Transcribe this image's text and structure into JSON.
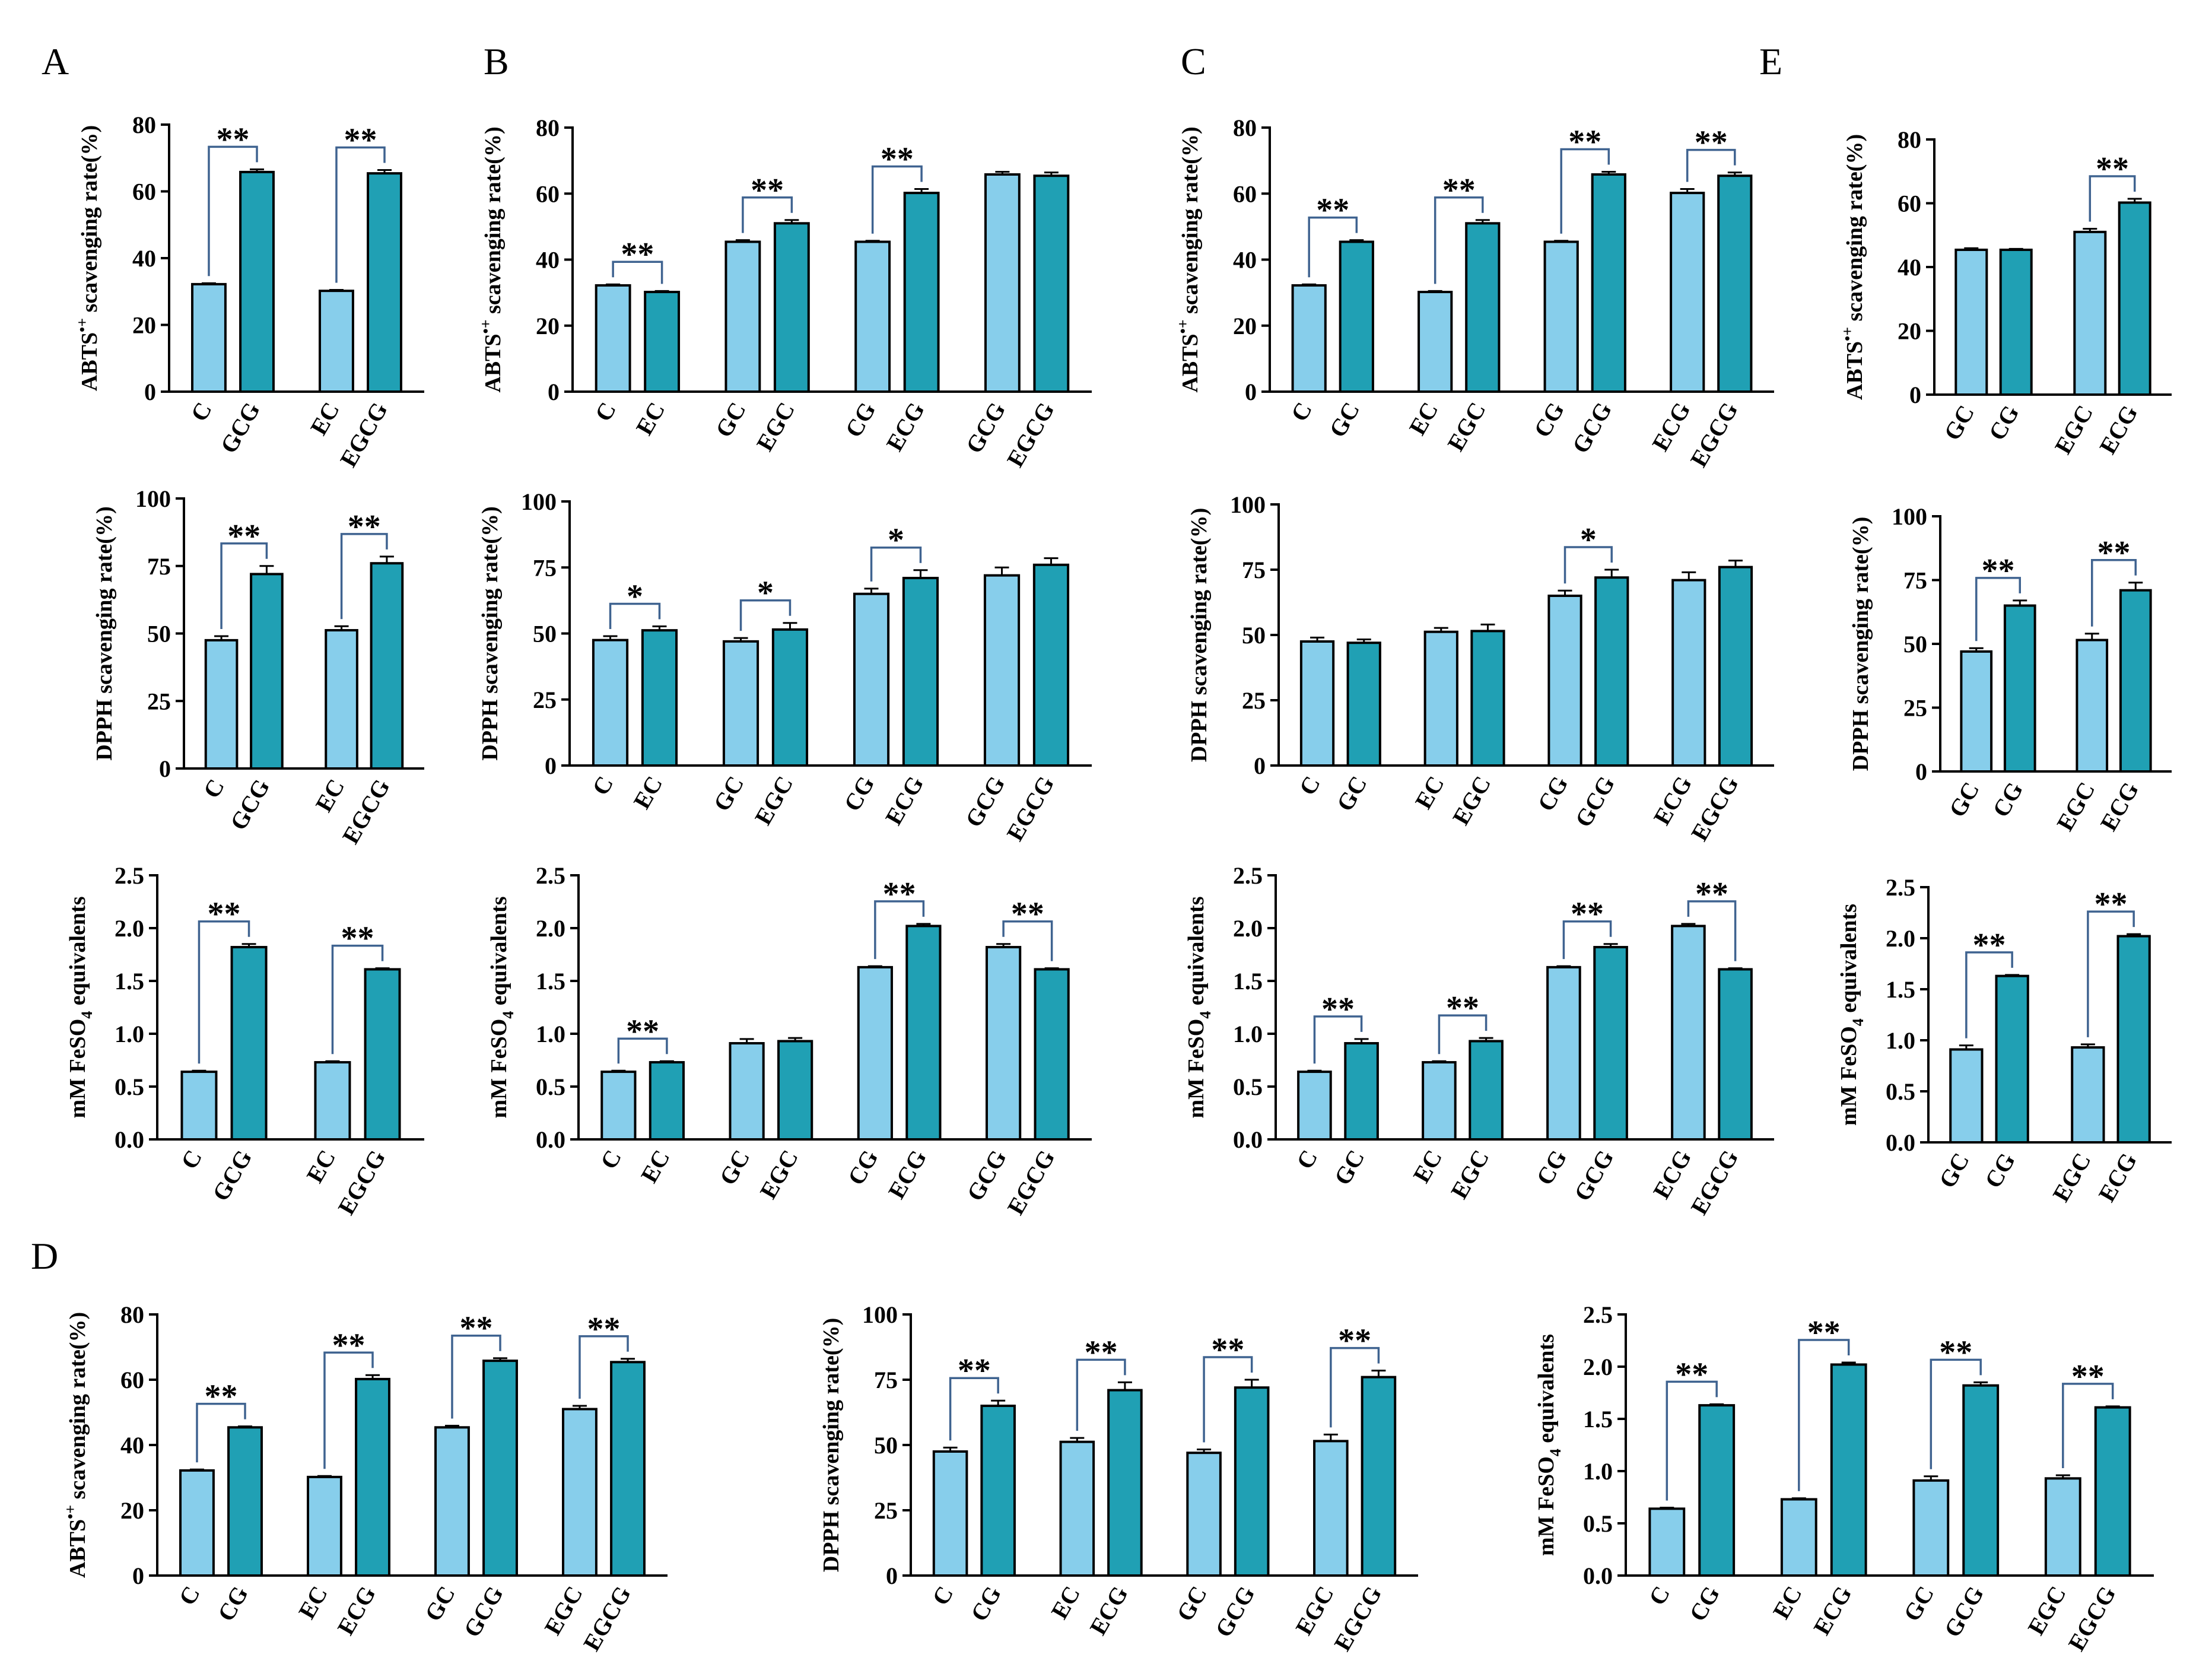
{
  "panel_letters": [
    "A",
    "B",
    "C",
    "D",
    "E"
  ],
  "colors": {
    "light": "#87CEEB",
    "dark": "#20A0B4",
    "bracket": "#3F6390",
    "axis": "#000000"
  },
  "chart_data": [
    {
      "id": "A1",
      "type": "bar",
      "panel": "A",
      "ylabel": "ABTS•+ scavenging rate(%)",
      "ylabel_kind": "abts",
      "ylim": [
        0,
        80
      ],
      "yticks": [
        "0",
        "20",
        "40",
        "60",
        "80"
      ],
      "groups": [
        {
          "labels": [
            "C",
            "GCG"
          ],
          "values": [
            32.2,
            65.8
          ],
          "errors": [
            0.3,
            0.8
          ],
          "sig": "**"
        },
        {
          "labels": [
            "EC",
            "EGCG"
          ],
          "values": [
            30.2,
            65.4
          ],
          "errors": [
            0.3,
            1.0
          ],
          "sig": "**"
        }
      ]
    },
    {
      "id": "A2",
      "type": "bar",
      "panel": "A",
      "ylabel": "DPPH scavenging rate(%)",
      "ylabel_kind": "plain",
      "ylim": [
        0,
        100
      ],
      "yticks": [
        "0",
        "25",
        "50",
        "75",
        "100"
      ],
      "groups": [
        {
          "labels": [
            "C",
            "GCG"
          ],
          "values": [
            47.5,
            72.0
          ],
          "errors": [
            1.5,
            3.0
          ],
          "sig": "**"
        },
        {
          "labels": [
            "EC",
            "EGCG"
          ],
          "values": [
            51.2,
            76.0
          ],
          "errors": [
            1.5,
            2.5
          ],
          "sig": "**"
        }
      ]
    },
    {
      "id": "A3",
      "type": "bar",
      "panel": "A",
      "ylabel": "mM FeSO4 equivalents",
      "ylabel_kind": "feso4",
      "ylim": [
        0,
        2.5
      ],
      "yticks": [
        "0.0",
        "0.5",
        "1.0",
        "1.5",
        "2.0",
        "2.5"
      ],
      "groups": [
        {
          "labels": [
            "C",
            "GCG"
          ],
          "values": [
            0.64,
            1.82
          ],
          "errors": [
            0.01,
            0.03
          ],
          "sig": "**"
        },
        {
          "labels": [
            "EC",
            "EGCG"
          ],
          "values": [
            0.73,
            1.61
          ],
          "errors": [
            0.01,
            0.01
          ],
          "sig": "**"
        }
      ]
    },
    {
      "id": "B1",
      "type": "bar",
      "panel": "B",
      "ylabel": "ABTS•+ scavenging rate(%)",
      "ylabel_kind": "abts",
      "ylim": [
        0,
        80
      ],
      "yticks": [
        "0",
        "20",
        "40",
        "60",
        "80"
      ],
      "groups": [
        {
          "labels": [
            "C",
            "EC"
          ],
          "values": [
            32.2,
            30.2
          ],
          "errors": [
            0.3,
            0.3
          ],
          "sig": "**"
        },
        {
          "labels": [
            "GC",
            "EGC"
          ],
          "values": [
            45.4,
            51.0
          ],
          "errors": [
            0.5,
            1.0
          ],
          "sig": "**"
        },
        {
          "labels": [
            "CG",
            "ECG"
          ],
          "values": [
            45.4,
            60.2
          ],
          "errors": [
            0.3,
            1.2
          ],
          "sig": "**"
        },
        {
          "labels": [
            "GCG",
            "EGCG"
          ],
          "values": [
            65.8,
            65.4
          ],
          "errors": [
            0.8,
            1.0
          ],
          "sig": ""
        }
      ]
    },
    {
      "id": "B2",
      "type": "bar",
      "panel": "B",
      "ylabel": "DPPH scavenging rate(%)",
      "ylabel_kind": "plain",
      "ylim": [
        0,
        100
      ],
      "yticks": [
        "0",
        "25",
        "50",
        "75",
        "100"
      ],
      "groups": [
        {
          "labels": [
            "C",
            "EC"
          ],
          "values": [
            47.5,
            51.2
          ],
          "errors": [
            1.5,
            1.5
          ],
          "sig": "*"
        },
        {
          "labels": [
            "GC",
            "EGC"
          ],
          "values": [
            47.0,
            51.5
          ],
          "errors": [
            1.3,
            2.5
          ],
          "sig": "*"
        },
        {
          "labels": [
            "CG",
            "ECG"
          ],
          "values": [
            65.0,
            71.0
          ],
          "errors": [
            2.0,
            3.0
          ],
          "sig": "*"
        },
        {
          "labels": [
            "GCG",
            "EGCG"
          ],
          "values": [
            72.0,
            76.0
          ],
          "errors": [
            3.0,
            2.5
          ],
          "sig": ""
        }
      ]
    },
    {
      "id": "B3",
      "type": "bar",
      "panel": "B",
      "ylabel": "mM FeSO4 equivalents",
      "ylabel_kind": "feso4",
      "ylim": [
        0,
        2.5
      ],
      "yticks": [
        "0.0",
        "0.5",
        "1.0",
        "1.5",
        "2.0",
        "2.5"
      ],
      "groups": [
        {
          "labels": [
            "C",
            "EC"
          ],
          "values": [
            0.64,
            0.73
          ],
          "errors": [
            0.01,
            0.01
          ],
          "sig": "**"
        },
        {
          "labels": [
            "GC",
            "EGC"
          ],
          "values": [
            0.91,
            0.93
          ],
          "errors": [
            0.04,
            0.03
          ],
          "sig": ""
        },
        {
          "labels": [
            "CG",
            "ECG"
          ],
          "values": [
            1.63,
            2.02
          ],
          "errors": [
            0.01,
            0.02
          ],
          "sig": "**"
        },
        {
          "labels": [
            "GCG",
            "EGCG"
          ],
          "values": [
            1.82,
            1.61
          ],
          "errors": [
            0.03,
            0.01
          ],
          "sig": "**"
        }
      ]
    },
    {
      "id": "C1",
      "type": "bar",
      "panel": "C",
      "ylabel": "ABTS•+ scavenging rate(%)",
      "ylabel_kind": "abts",
      "ylim": [
        0,
        80
      ],
      "yticks": [
        "0",
        "20",
        "40",
        "60",
        "80"
      ],
      "groups": [
        {
          "labels": [
            "C",
            "GC"
          ],
          "values": [
            32.2,
            45.4
          ],
          "errors": [
            0.3,
            0.5
          ],
          "sig": "**"
        },
        {
          "labels": [
            "EC",
            "EGC"
          ],
          "values": [
            30.2,
            51.0
          ],
          "errors": [
            0.3,
            1.0
          ],
          "sig": "**"
        },
        {
          "labels": [
            "CG",
            "GCG"
          ],
          "values": [
            45.4,
            65.8
          ],
          "errors": [
            0.3,
            0.8
          ],
          "sig": "**"
        },
        {
          "labels": [
            "ECG",
            "EGCG"
          ],
          "values": [
            60.2,
            65.4
          ],
          "errors": [
            1.2,
            1.0
          ],
          "sig": "**"
        }
      ]
    },
    {
      "id": "C2",
      "type": "bar",
      "panel": "C",
      "ylabel": "DPPH scavenging rate(%)",
      "ylabel_kind": "plain",
      "ylim": [
        0,
        100
      ],
      "yticks": [
        "0",
        "25",
        "50",
        "75",
        "100"
      ],
      "groups": [
        {
          "labels": [
            "C",
            "GC"
          ],
          "values": [
            47.5,
            47.0
          ],
          "errors": [
            1.5,
            1.3
          ],
          "sig": ""
        },
        {
          "labels": [
            "EC",
            "EGC"
          ],
          "values": [
            51.2,
            51.5
          ],
          "errors": [
            1.5,
            2.5
          ],
          "sig": ""
        },
        {
          "labels": [
            "CG",
            "GCG"
          ],
          "values": [
            65.0,
            72.0
          ],
          "errors": [
            2.0,
            3.0
          ],
          "sig": "*"
        },
        {
          "labels": [
            "ECG",
            "EGCG"
          ],
          "values": [
            71.0,
            76.0
          ],
          "errors": [
            3.0,
            2.5
          ],
          "sig": ""
        }
      ]
    },
    {
      "id": "C3",
      "type": "bar",
      "panel": "C",
      "ylabel": "mM FeSO4 equivalents",
      "ylabel_kind": "feso4",
      "ylim": [
        0,
        2.5
      ],
      "yticks": [
        "0.0",
        "0.5",
        "1.0",
        "1.5",
        "2.0",
        "2.5"
      ],
      "groups": [
        {
          "labels": [
            "C",
            "GC"
          ],
          "values": [
            0.64,
            0.91
          ],
          "errors": [
            0.01,
            0.04
          ],
          "sig": "**"
        },
        {
          "labels": [
            "EC",
            "EGC"
          ],
          "values": [
            0.73,
            0.93
          ],
          "errors": [
            0.01,
            0.03
          ],
          "sig": "**"
        },
        {
          "labels": [
            "CG",
            "GCG"
          ],
          "values": [
            1.63,
            1.82
          ],
          "errors": [
            0.01,
            0.03
          ],
          "sig": "**"
        },
        {
          "labels": [
            "ECG",
            "EGCG"
          ],
          "values": [
            2.02,
            1.61
          ],
          "errors": [
            0.02,
            0.01
          ],
          "sig": "**"
        }
      ]
    },
    {
      "id": "E1",
      "type": "bar",
      "panel": "E",
      "ylabel": "ABTS•+ scavenging rate(%)",
      "ylabel_kind": "abts",
      "ylim": [
        0,
        80
      ],
      "yticks": [
        "0",
        "20",
        "40",
        "60",
        "80"
      ],
      "groups": [
        {
          "labels": [
            "GC",
            "CG"
          ],
          "values": [
            45.4,
            45.4
          ],
          "errors": [
            0.5,
            0.3
          ],
          "sig": ""
        },
        {
          "labels": [
            "EGC",
            "ECG"
          ],
          "values": [
            51.0,
            60.2
          ],
          "errors": [
            1.0,
            1.2
          ],
          "sig": "**"
        }
      ]
    },
    {
      "id": "E2",
      "type": "bar",
      "panel": "E",
      "ylabel": "DPPH scavenging rate(%)",
      "ylabel_kind": "plain",
      "ylim": [
        0,
        100
      ],
      "yticks": [
        "0",
        "25",
        "50",
        "75",
        "100"
      ],
      "groups": [
        {
          "labels": [
            "GC",
            "CG"
          ],
          "values": [
            47.0,
            65.0
          ],
          "errors": [
            1.3,
            2.0
          ],
          "sig": "**"
        },
        {
          "labels": [
            "EGC",
            "ECG"
          ],
          "values": [
            51.5,
            71.0
          ],
          "errors": [
            2.5,
            3.0
          ],
          "sig": "**"
        }
      ]
    },
    {
      "id": "E3",
      "type": "bar",
      "panel": "E",
      "ylabel": "mM FeSO4 equivalents",
      "ylabel_kind": "feso4",
      "ylim": [
        0,
        2.5
      ],
      "yticks": [
        "0.0",
        "0.5",
        "1.0",
        "1.5",
        "2.0",
        "2.5"
      ],
      "groups": [
        {
          "labels": [
            "GC",
            "CG"
          ],
          "values": [
            0.91,
            1.63
          ],
          "errors": [
            0.04,
            0.01
          ],
          "sig": "**"
        },
        {
          "labels": [
            "EGC",
            "ECG"
          ],
          "values": [
            0.93,
            2.02
          ],
          "errors": [
            0.03,
            0.02
          ],
          "sig": "**"
        }
      ]
    },
    {
      "id": "D1",
      "type": "bar",
      "panel": "D",
      "ylabel": "ABTS•+ scavenging rate(%)",
      "ylabel_kind": "abts",
      "ylim": [
        0,
        80
      ],
      "yticks": [
        "0",
        "20",
        "40",
        "60",
        "80"
      ],
      "groups": [
        {
          "labels": [
            "C",
            "CG"
          ],
          "values": [
            32.2,
            45.4
          ],
          "errors": [
            0.3,
            0.3
          ],
          "sig": "**"
        },
        {
          "labels": [
            "EC",
            "ECG"
          ],
          "values": [
            30.2,
            60.2
          ],
          "errors": [
            0.3,
            1.2
          ],
          "sig": "**"
        },
        {
          "labels": [
            "GC",
            "GCG"
          ],
          "values": [
            45.4,
            65.8
          ],
          "errors": [
            0.5,
            0.8
          ],
          "sig": "**"
        },
        {
          "labels": [
            "EGC",
            "EGCG"
          ],
          "values": [
            51.0,
            65.4
          ],
          "errors": [
            1.0,
            1.0
          ],
          "sig": "**"
        }
      ]
    },
    {
      "id": "D2",
      "type": "bar",
      "panel": "D",
      "ylabel": "DPPH scavenging rate(%)",
      "ylabel_kind": "plain",
      "ylim": [
        0,
        100
      ],
      "yticks": [
        "0",
        "25",
        "50",
        "75",
        "100"
      ],
      "groups": [
        {
          "labels": [
            "C",
            "CG"
          ],
          "values": [
            47.5,
            65.0
          ],
          "errors": [
            1.5,
            2.0
          ],
          "sig": "**"
        },
        {
          "labels": [
            "EC",
            "ECG"
          ],
          "values": [
            51.2,
            71.0
          ],
          "errors": [
            1.5,
            3.0
          ],
          "sig": "**"
        },
        {
          "labels": [
            "GC",
            "GCG"
          ],
          "values": [
            47.0,
            72.0
          ],
          "errors": [
            1.3,
            3.0
          ],
          "sig": "**"
        },
        {
          "labels": [
            "EGC",
            "EGCG"
          ],
          "values": [
            51.5,
            76.0
          ],
          "errors": [
            2.5,
            2.5
          ],
          "sig": "**"
        }
      ]
    },
    {
      "id": "D3",
      "type": "bar",
      "panel": "D",
      "ylabel": "mM FeSO4 equivalents",
      "ylabel_kind": "feso4",
      "ylim": [
        0,
        2.5
      ],
      "yticks": [
        "0.0",
        "0.5",
        "1.0",
        "1.5",
        "2.0",
        "2.5"
      ],
      "groups": [
        {
          "labels": [
            "C",
            "CG"
          ],
          "values": [
            0.64,
            1.63
          ],
          "errors": [
            0.01,
            0.01
          ],
          "sig": "**"
        },
        {
          "labels": [
            "EC",
            "ECG"
          ],
          "values": [
            0.73,
            2.02
          ],
          "errors": [
            0.01,
            0.02
          ],
          "sig": "**"
        },
        {
          "labels": [
            "GC",
            "GCG"
          ],
          "values": [
            0.91,
            1.82
          ],
          "errors": [
            0.04,
            0.03
          ],
          "sig": "**"
        },
        {
          "labels": [
            "EGC",
            "EGCG"
          ],
          "values": [
            0.93,
            1.61
          ],
          "errors": [
            0.03,
            0.01
          ],
          "sig": "**"
        }
      ]
    }
  ]
}
